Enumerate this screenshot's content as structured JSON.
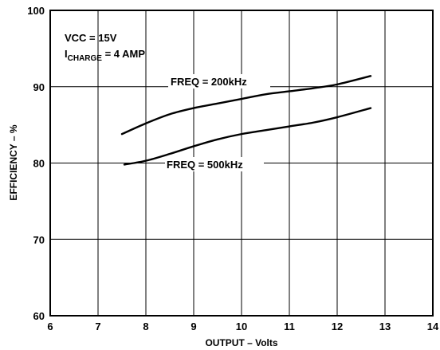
{
  "chart_data": {
    "type": "line",
    "xlabel": "OUTPUT – Volts",
    "ylabel": "EFFICIENCY – %",
    "xlim": [
      6,
      14
    ],
    "ylim": [
      60,
      100
    ],
    "xticks": [
      "6",
      "7",
      "8",
      "9",
      "10",
      "11",
      "12",
      "13",
      "14"
    ],
    "yticks": [
      "60",
      "70",
      "80",
      "90",
      "100"
    ],
    "grid": true,
    "annotations": {
      "vcc": "VCC = 15V",
      "icharge_prefix": "I",
      "icharge_sub": "CHARGE",
      "icharge_value": " = 4 AMP"
    },
    "series": [
      {
        "name": "FREQ = 200kHz",
        "x": [
          7.5,
          8.0,
          8.5,
          9.0,
          9.5,
          10.0,
          10.5,
          11.0,
          11.5,
          12.0,
          12.7
        ],
        "y": [
          83.8,
          85.2,
          86.4,
          87.2,
          87.8,
          88.4,
          89.0,
          89.4,
          89.8,
          90.3,
          91.4
        ]
      },
      {
        "name": "FREQ = 500kHz",
        "x": [
          7.55,
          8.0,
          8.5,
          9.0,
          9.5,
          10.0,
          10.5,
          11.0,
          11.5,
          12.0,
          12.7
        ],
        "y": [
          79.8,
          80.3,
          81.2,
          82.2,
          83.1,
          83.8,
          84.3,
          84.8,
          85.3,
          86.0,
          87.2
        ]
      }
    ]
  }
}
